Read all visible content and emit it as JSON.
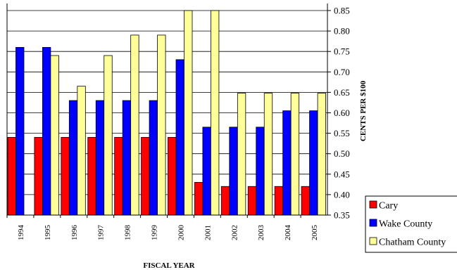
{
  "chart_data": {
    "type": "bar",
    "categories": [
      "1994",
      "1995",
      "1996",
      "1997",
      "1998",
      "1999",
      "2000",
      "2001",
      "2002",
      "2003",
      "2004",
      "2005"
    ],
    "series": [
      {
        "name": "Cary",
        "color": "#ff0000",
        "values": [
          0.54,
          0.54,
          0.54,
          0.54,
          0.54,
          0.54,
          0.54,
          0.43,
          0.42,
          0.42,
          0.42,
          0.42
        ]
      },
      {
        "name": "Wake County",
        "color": "#0000ff",
        "values": [
          0.76,
          0.76,
          0.63,
          0.63,
          0.63,
          0.63,
          0.73,
          0.565,
          0.565,
          0.565,
          0.605,
          0.605
        ]
      },
      {
        "name": "Chatham County",
        "color": "#ffff99",
        "values": [
          null,
          0.74,
          0.665,
          0.74,
          0.79,
          0.79,
          0.85,
          0.85,
          0.648,
          0.648,
          0.648,
          0.648
        ]
      }
    ],
    "ylim": [
      0.35,
      0.85
    ],
    "yticks": [
      "0.35",
      "0.40",
      "0.45",
      "0.50",
      "0.55",
      "0.60",
      "0.65",
      "0.70",
      "0.75",
      "0.80",
      "0.85"
    ],
    "xlabel": "FISCAL YEAR",
    "ylabel": "CENTS PER $100",
    "grid": true,
    "legend_position": "bottom-right"
  }
}
